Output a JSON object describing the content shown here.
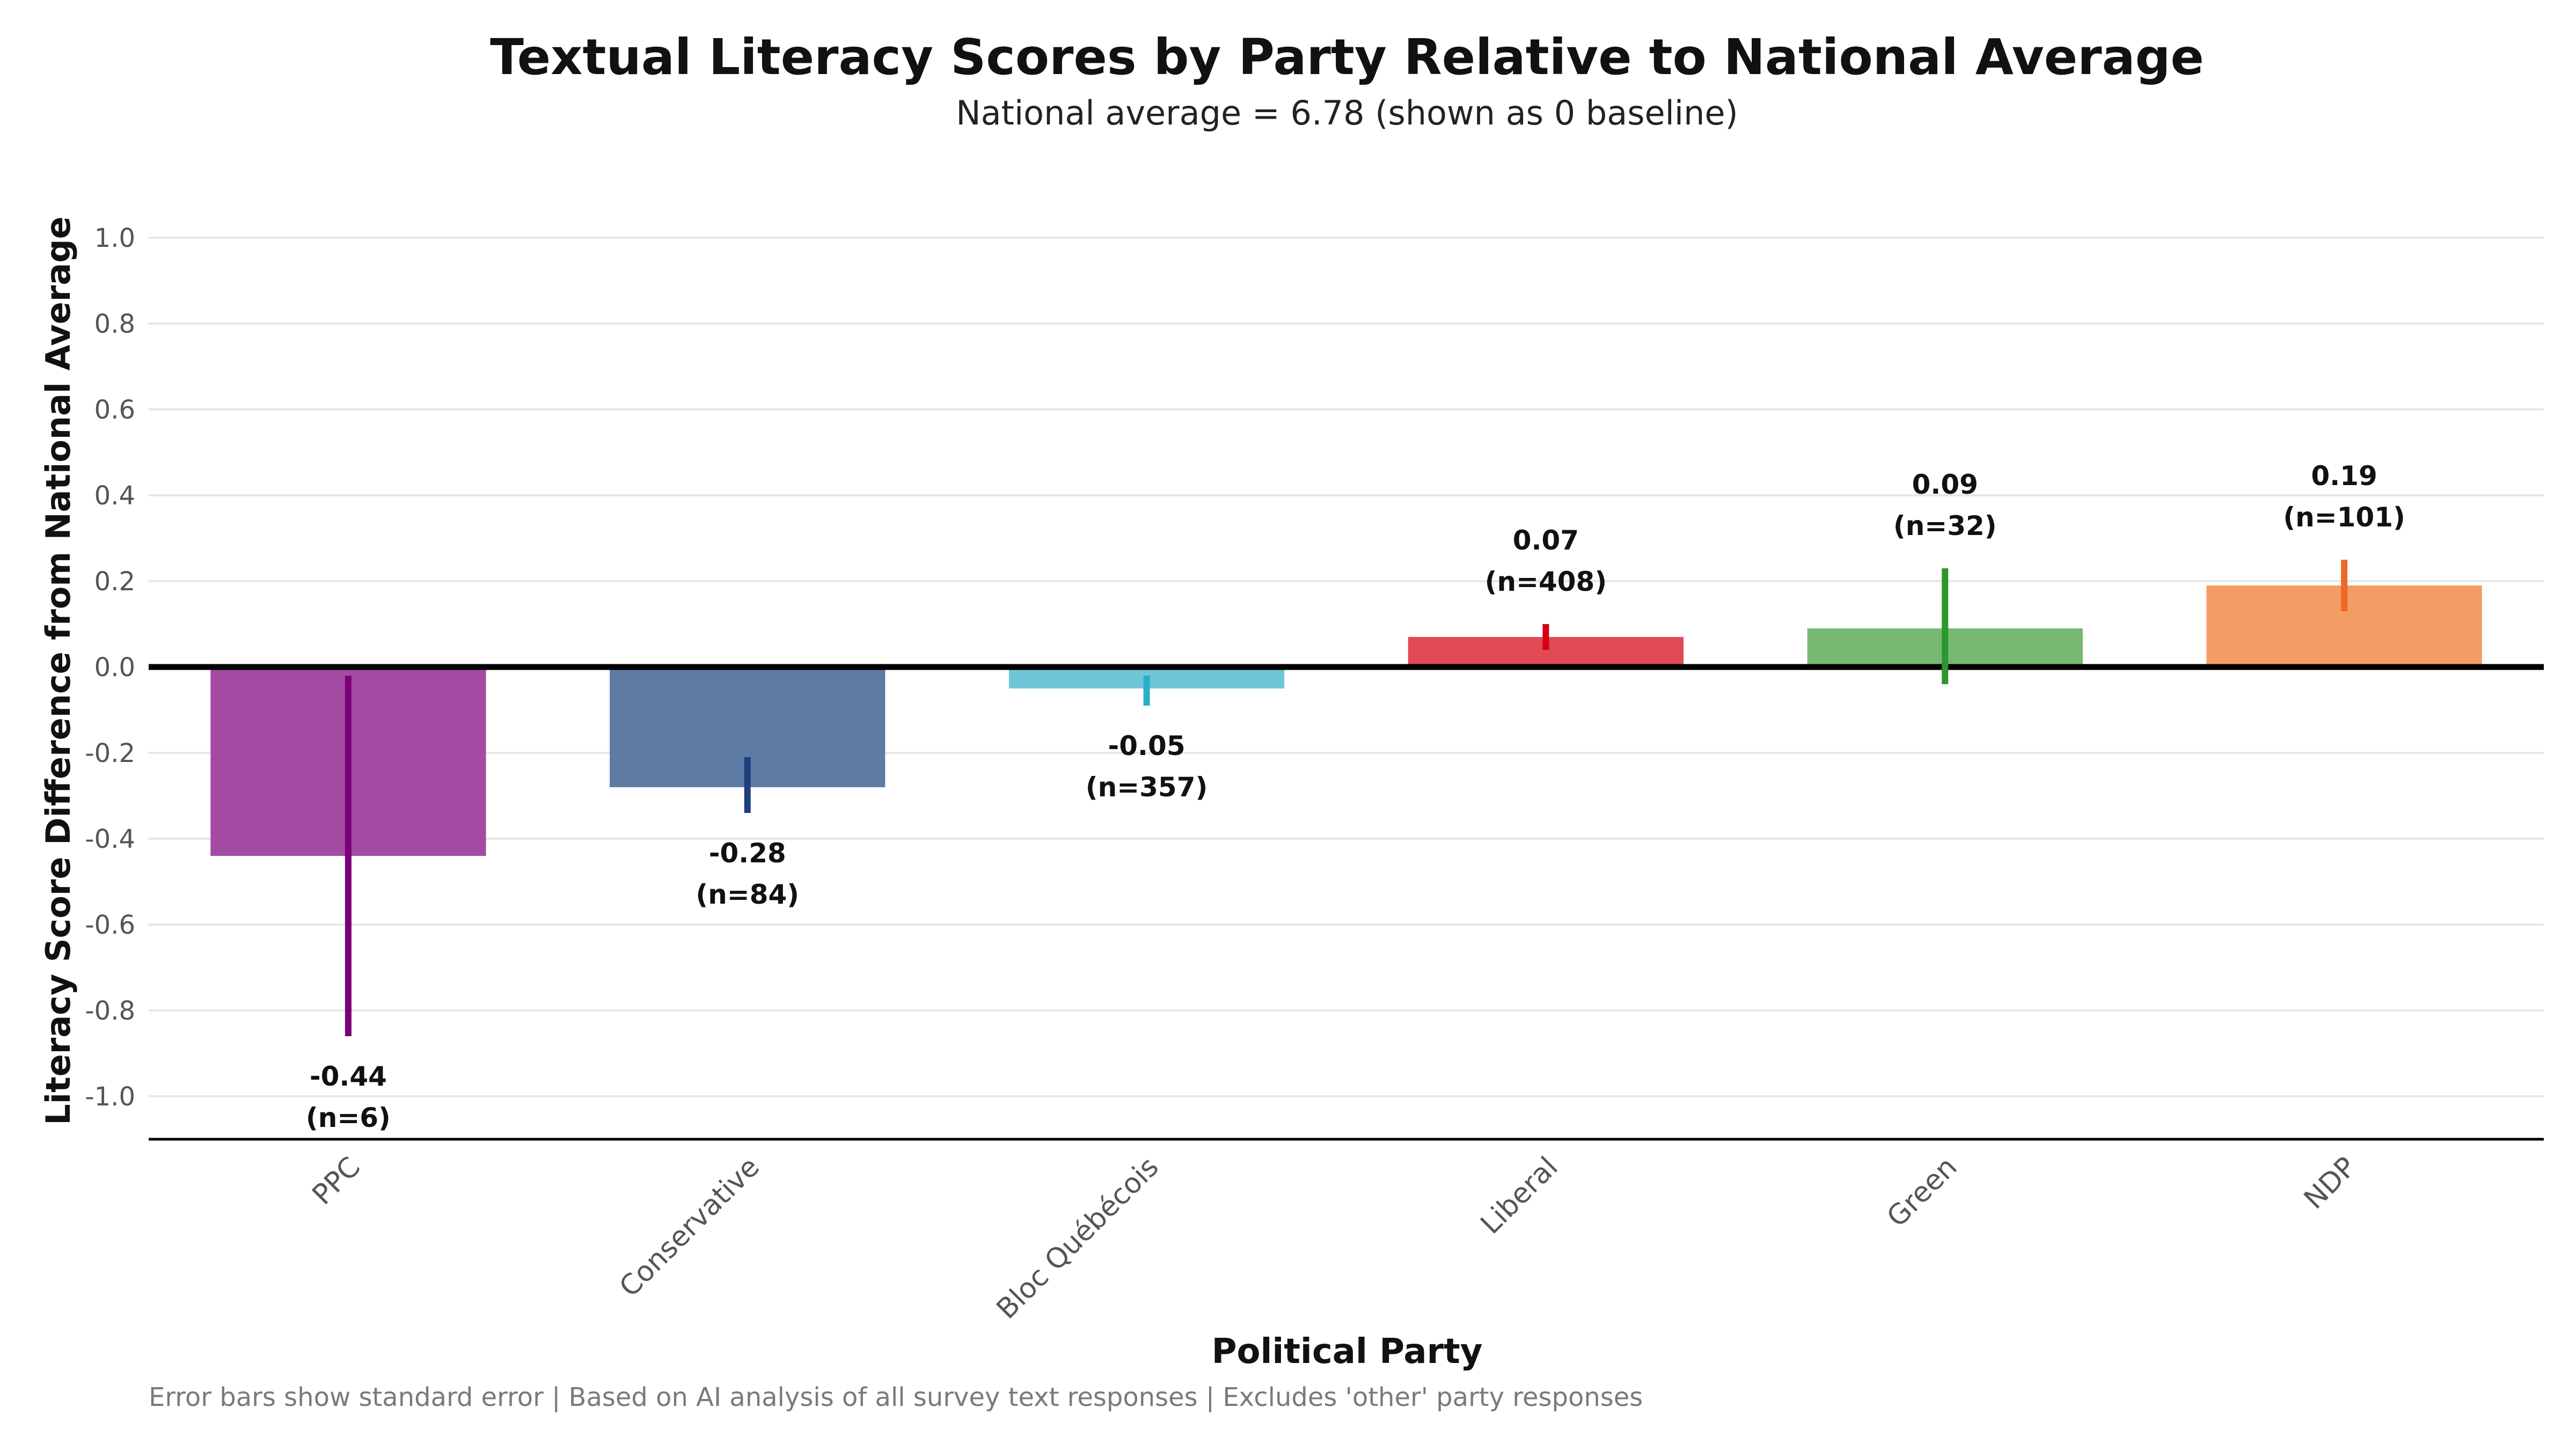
{
  "chart_data": {
    "type": "bar",
    "title": "Textual Literacy Scores by Party Relative to National Average",
    "subtitle": "National average = 6.78 (shown as 0 baseline)",
    "xlabel": "Political Party",
    "ylabel": "Literacy Score Difference from National Average",
    "ylim": [
      -1.1,
      1.0
    ],
    "yticks": [
      {
        "value": 1.0,
        "label": "1.0"
      },
      {
        "value": 0.8,
        "label": "0.8"
      },
      {
        "value": 0.6,
        "label": "0.6"
      },
      {
        "value": 0.4,
        "label": "0.4"
      },
      {
        "value": 0.2,
        "label": "0.2"
      },
      {
        "value": 0.0,
        "label": "0.0"
      },
      {
        "value": -0.2,
        "label": "-0.2"
      },
      {
        "value": -0.4,
        "label": "-0.4"
      },
      {
        "value": -0.6,
        "label": "-0.6"
      },
      {
        "value": -0.8,
        "label": "-0.8"
      },
      {
        "value": -1.0,
        "label": "-1.0"
      }
    ],
    "grid": true,
    "categories": [
      "PPC",
      "Conservative",
      "Bloc Québécois",
      "Liberal",
      "Green",
      "NDP"
    ],
    "values": [
      -0.44,
      -0.28,
      -0.05,
      0.07,
      0.09,
      0.19
    ],
    "error_low": [
      -0.86,
      -0.34,
      -0.09,
      0.04,
      -0.04,
      0.13
    ],
    "error_high": [
      -0.02,
      -0.21,
      -0.02,
      0.1,
      0.23,
      0.25
    ],
    "value_labels": [
      "-0.44",
      "-0.28",
      "-0.05",
      "0.07",
      "0.09",
      "0.19"
    ],
    "n_labels": [
      "(n=6)",
      "(n=84)",
      "(n=357)",
      "(n=408)",
      "(n=32)",
      "(n=101)"
    ],
    "bar_colors": [
      "#A34BA3",
      "#5E7BA6",
      "#6EC6D7",
      "#E14A55",
      "#77B972",
      "#F39C64"
    ],
    "error_colors": [
      "#7A007A",
      "#1F3F7F",
      "#2AAFC9",
      "#D40012",
      "#2E962E",
      "#EB6A24"
    ],
    "footnote": "Error bars show standard error | Based on AI analysis of all survey text responses | Excludes 'other' party responses"
  }
}
